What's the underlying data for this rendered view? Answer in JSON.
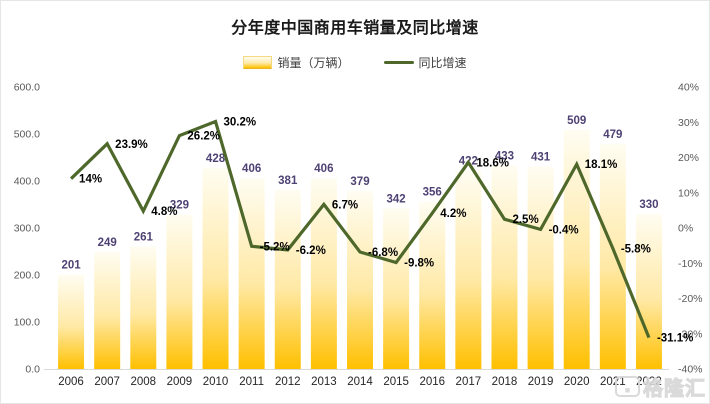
{
  "watermark": {
    "text": "格隆汇"
  },
  "chart_data": {
    "type": "bar",
    "combo": "bar+line",
    "title": "分年度中国商用车销量及同比增速",
    "categories": [
      "2006",
      "2007",
      "2008",
      "2009",
      "2010",
      "2011",
      "2012",
      "2013",
      "2014",
      "2015",
      "2016",
      "2017",
      "2018",
      "2019",
      "2020",
      "2021",
      "2022"
    ],
    "series": [
      {
        "name": "销量（万辆）",
        "type": "bar",
        "axis": "left",
        "values": [
          201,
          249,
          261,
          329,
          428,
          406,
          381,
          406,
          379,
          342,
          356,
          422,
          433,
          431,
          509,
          479,
          330
        ],
        "labels": [
          "201",
          "249",
          "261",
          "329",
          "428",
          "406",
          "381",
          "406",
          "379",
          "342",
          "356",
          "422",
          "433",
          "431",
          "509",
          "479",
          "330"
        ]
      },
      {
        "name": "同比增速",
        "type": "line",
        "axis": "right",
        "values": [
          14,
          23.9,
          4.8,
          26.2,
          30.2,
          -5.2,
          -6.2,
          6.7,
          -6.8,
          -9.8,
          4.2,
          18.6,
          2.5,
          -0.4,
          18.1,
          -5.8,
          -31.1
        ],
        "labels": [
          "14%",
          "23.9%",
          "4.8%",
          "26.2%",
          "30.2%",
          "-5.2%",
          "-6.2%",
          "6.7%",
          "-6.8%",
          "-9.8%",
          "4.2%",
          "18.6%",
          "2.5%",
          "-0.4%",
          "18.1%",
          "-5.8%",
          "-31.1%"
        ]
      }
    ],
    "left_axis": {
      "min": 0,
      "max": 600,
      "ticks": [
        "600.0",
        "500.0",
        "400.0",
        "300.0",
        "200.0",
        "100.0",
        "0.0"
      ]
    },
    "right_axis": {
      "min": -40,
      "max": 40,
      "ticks": [
        "40%",
        "30%",
        "20%",
        "10%",
        "0%",
        "-10%",
        "-20%",
        "-30%",
        "-40%"
      ]
    },
    "grid": false,
    "legend_position": "top",
    "colors": {
      "bar_top": "#FFFDF2",
      "bar_mid": "#FFE9A6",
      "bar_bottom": "#FFC000",
      "line": "#4E682B",
      "bar_label": "#4E4274",
      "line_label": "#000000",
      "axis_text": "#595959",
      "category_text": "#262626",
      "axis_line": "#D9D9D9"
    }
  }
}
